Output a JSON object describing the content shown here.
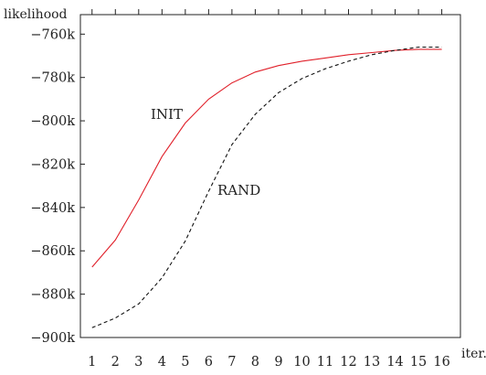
{
  "chart_data": {
    "type": "line",
    "title": "",
    "ylabel": "likelihood",
    "xlabel": "iter.",
    "x": [
      1,
      2,
      3,
      4,
      5,
      6,
      7,
      8,
      9,
      10,
      11,
      12,
      13,
      14,
      15,
      16
    ],
    "xlim": [
      0.5,
      16.8
    ],
    "ylim": [
      -900000,
      -751000
    ],
    "yticks": [
      -760000,
      -780000,
      -800000,
      -820000,
      -840000,
      -860000,
      -880000,
      -900000
    ],
    "ytick_labels": [
      "−760k",
      "−780k",
      "−800k",
      "−820k",
      "−840k",
      "−860k",
      "−880k",
      "−900k"
    ],
    "xtick_labels": [
      "1",
      "2",
      "3",
      "4",
      "5",
      "6",
      "7",
      "8",
      "9",
      "10",
      "11",
      "12",
      "13",
      "14",
      "15",
      "16"
    ],
    "grid": false,
    "series": [
      {
        "name": "INIT",
        "color": "#e0202a",
        "style": "solid",
        "values": [
          -867500,
          -855000,
          -836500,
          -816500,
          -801000,
          -790000,
          -782500,
          -777500,
          -774500,
          -772500,
          -771000,
          -769500,
          -768500,
          -767500,
          -767000,
          -767000
        ]
      },
      {
        "name": "RAND",
        "color": "#111111",
        "style": "dashed",
        "values": [
          -895500,
          -891000,
          -884500,
          -872500,
          -855500,
          -832500,
          -811000,
          -797000,
          -787000,
          -780500,
          -776000,
          -772500,
          -769500,
          -767500,
          -766000,
          -766000
        ]
      }
    ]
  }
}
